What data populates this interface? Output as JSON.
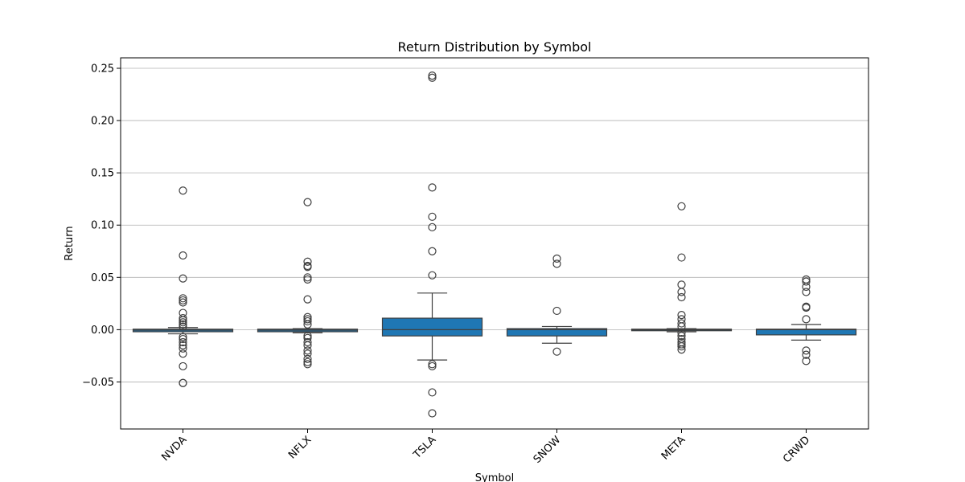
{
  "chart_data": {
    "type": "box",
    "title": "Return Distribution by Symbol",
    "xlabel": "Symbol",
    "ylabel": "Return",
    "ylim": [
      -0.095,
      0.26
    ],
    "yticks": [
      -0.05,
      0.0,
      0.05,
      0.1,
      0.15,
      0.2,
      0.25
    ],
    "ytick_labels": [
      "−0.05",
      "0.00",
      "0.05",
      "0.10",
      "0.15",
      "0.20",
      "0.25"
    ],
    "grid": "horizontal",
    "box_color": "#1f77b4",
    "categories": [
      "NVDA",
      "NFLX",
      "TSLA",
      "SNOW",
      "META",
      "CRWD"
    ],
    "boxes": [
      {
        "label": "NVDA",
        "whisker_low": -0.004,
        "q1": -0.002,
        "median": -0.0005,
        "q3": 0.0005,
        "whisker_high": 0.002,
        "outliers": [
          0.133,
          0.071,
          0.049,
          0.03,
          0.028,
          0.026,
          0.016,
          0.011,
          0.009,
          0.007,
          0.005,
          0.003,
          -0.007,
          -0.009,
          -0.012,
          -0.015,
          -0.018,
          -0.023,
          -0.035,
          -0.051,
          -0.051
        ]
      },
      {
        "label": "NFLX",
        "whisker_low": -0.003,
        "q1": -0.002,
        "median": -0.0005,
        "q3": 0.0005,
        "whisker_high": 0.001,
        "outliers": [
          0.122,
          0.065,
          0.061,
          0.06,
          0.05,
          0.048,
          0.029,
          0.012,
          0.01,
          0.008,
          0.005,
          -0.006,
          -0.008,
          -0.012,
          -0.015,
          -0.02,
          -0.023,
          -0.028,
          -0.031,
          -0.033
        ]
      },
      {
        "label": "TSLA",
        "whisker_low": -0.029,
        "q1": -0.006,
        "median": 0.0,
        "q3": 0.011,
        "whisker_high": 0.035,
        "outliers": [
          0.243,
          0.241,
          0.136,
          0.108,
          0.098,
          0.075,
          0.052,
          -0.033,
          -0.035,
          -0.06,
          -0.08
        ]
      },
      {
        "label": "SNOW",
        "whisker_low": -0.013,
        "q1": -0.006,
        "median": 0.0,
        "q3": 0.001,
        "whisker_high": 0.003,
        "outliers": [
          0.068,
          0.063,
          0.018,
          -0.021
        ]
      },
      {
        "label": "META",
        "whisker_low": -0.002,
        "q1": -0.001,
        "median": -0.0002,
        "q3": 0.0005,
        "whisker_high": 0.001,
        "outliers": [
          0.118,
          0.069,
          0.043,
          0.036,
          0.031,
          0.014,
          0.01,
          0.006,
          0.003,
          -0.003,
          -0.006,
          -0.009,
          -0.012,
          -0.014,
          -0.016,
          -0.019
        ]
      },
      {
        "label": "CRWD",
        "whisker_low": -0.01,
        "q1": -0.005,
        "median": 0.0,
        "q3": 0.0005,
        "whisker_high": 0.005,
        "outliers": [
          0.048,
          0.046,
          0.041,
          0.036,
          0.022,
          0.021,
          0.01,
          -0.02,
          -0.024,
          -0.03
        ]
      }
    ]
  }
}
